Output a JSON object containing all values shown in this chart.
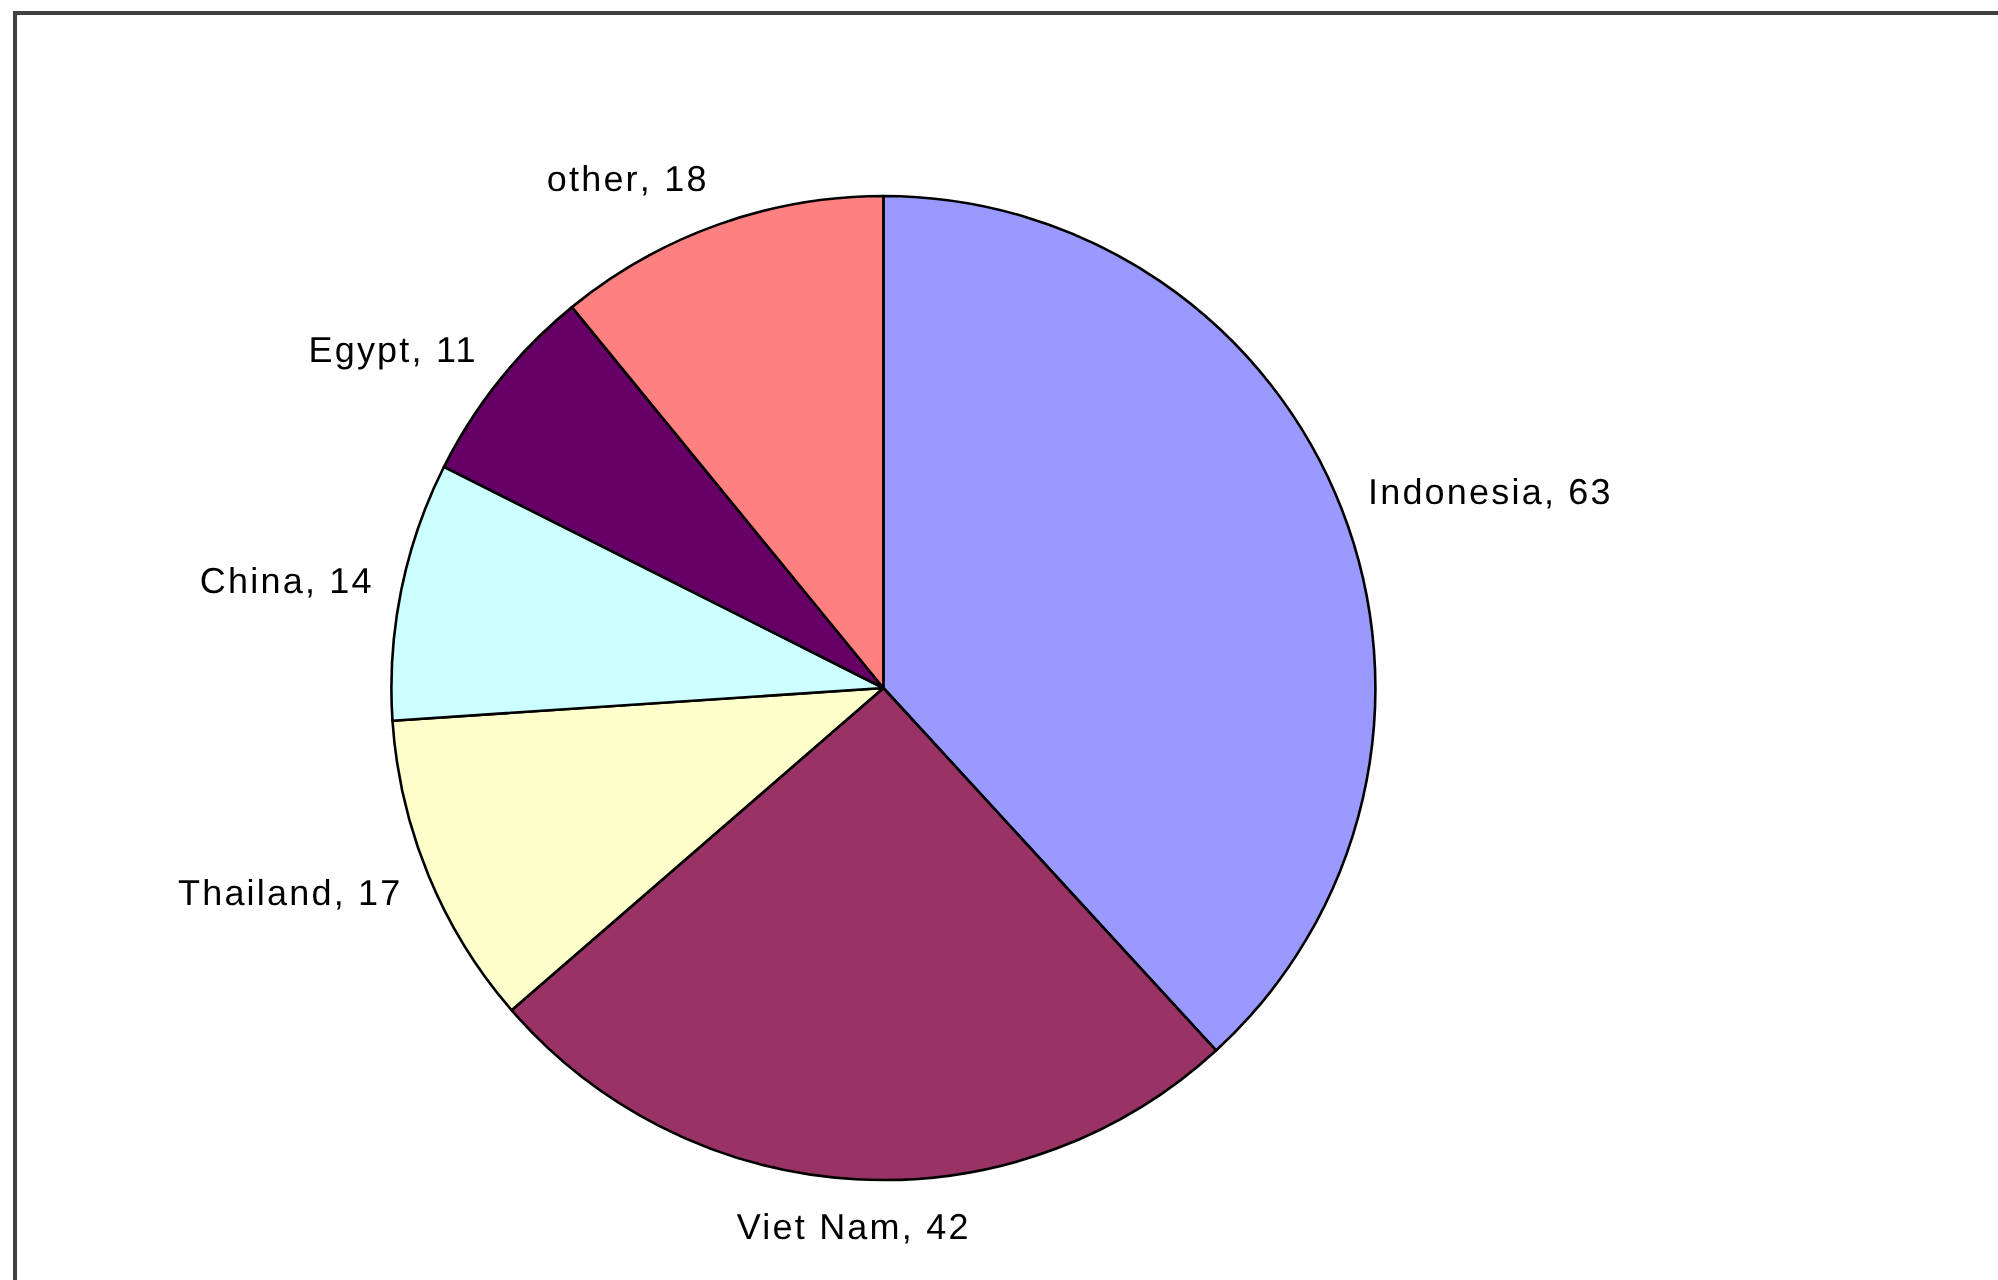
{
  "chart_data": {
    "type": "pie",
    "categories": [
      "Indonesia",
      "Viet Nam",
      "Thailand",
      "China",
      "Egypt",
      "other"
    ],
    "values": [
      63,
      42,
      17,
      14,
      11,
      18
    ],
    "value_labels": [
      ", 63",
      ", 42",
      ", 17",
      ", 14",
      ", 11",
      ", 18"
    ],
    "colors": [
      "#9999ff",
      "#993366",
      "#ffffcc",
      "#ccffff",
      "#660066",
      "#ff8080"
    ]
  }
}
